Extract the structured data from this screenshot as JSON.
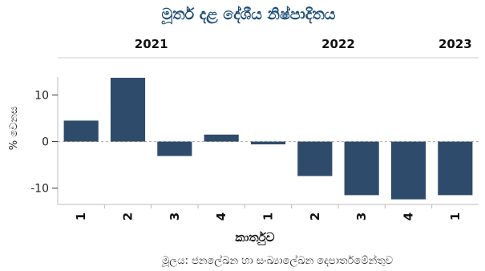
{
  "chart_data": {
    "type": "bar",
    "title": "මූර්ත දළ දේශීය නිෂ්පාදිතය",
    "xlabel": "කාර්තුව",
    "ylabel": "% වෙනස",
    "source": "මූලය: ජනලේඛන හා සංඛ්‍යාලේඛන දෙපාර්තමේන්තුව",
    "years": [
      {
        "label": "2021",
        "start": 0,
        "end": 3
      },
      {
        "label": "2022",
        "start": 4,
        "end": 7
      },
      {
        "label": "2023",
        "start": 8,
        "end": 8
      }
    ],
    "categories": [
      "1",
      "2",
      "3",
      "4",
      "1",
      "2",
      "3",
      "4",
      "1"
    ],
    "values": [
      4.5,
      13.7,
      -3.1,
      1.5,
      -0.6,
      -7.4,
      -11.5,
      -12.4,
      -11.5
    ],
    "ylim": [
      -13.5,
      18
    ],
    "yticks": [
      -10,
      0,
      10
    ],
    "bar_color": "#2f4b6b",
    "grid": false,
    "zero_line": "dashed"
  }
}
